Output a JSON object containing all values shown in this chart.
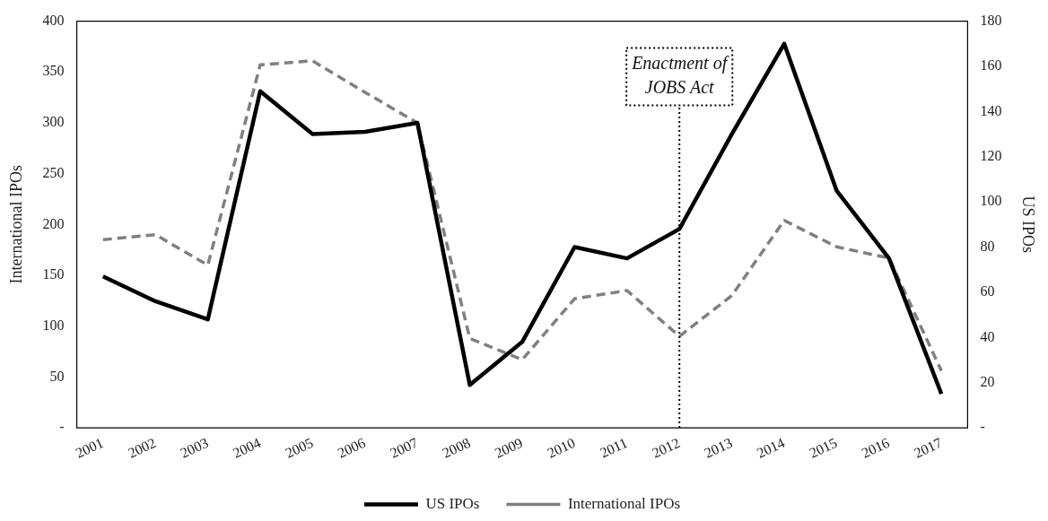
{
  "chart_data": {
    "type": "line",
    "categories": [
      "2001",
      "2002",
      "2003",
      "2004",
      "2005",
      "2006",
      "2007",
      "2008",
      "2009",
      "2010",
      "2011",
      "2012",
      "2013",
      "2014",
      "2015",
      "2016",
      "2017"
    ],
    "series": [
      {
        "name": "US IPOs",
        "color": "#000000",
        "axis": "y2",
        "line_style": "solid",
        "values": [
          67,
          56,
          48,
          149,
          130,
          131,
          135,
          19,
          38,
          80,
          75,
          88,
          130,
          170,
          105,
          75,
          15
        ]
      },
      {
        "name": "International IPOs",
        "color": "#808080",
        "line_style": "dashed",
        "values": [
          185,
          190,
          160,
          357,
          361,
          330,
          300,
          88,
          67,
          127,
          135,
          90,
          130,
          204,
          178,
          167,
          56
        ]
      }
    ],
    "ylabel": "International IPOs",
    "y2label": "US IPOs",
    "ylim": [
      0,
      400
    ],
    "yticks": [
      {
        "value": 0,
        "label": "-"
      },
      50,
      100,
      150,
      200,
      250,
      300,
      350,
      400
    ],
    "y2lim": [
      0,
      180
    ],
    "y2ticks": [
      {
        "value": 0,
        "label": "-"
      },
      20,
      40,
      60,
      80,
      100,
      120,
      140,
      160,
      180
    ],
    "ref_lines": [
      {
        "axis": "x",
        "value": "2012",
        "label": "Enactment of JOBS Act",
        "line_style": "dotted",
        "color": "#000000"
      }
    ],
    "grid": false,
    "legend": "bottom",
    "marker": "none"
  }
}
